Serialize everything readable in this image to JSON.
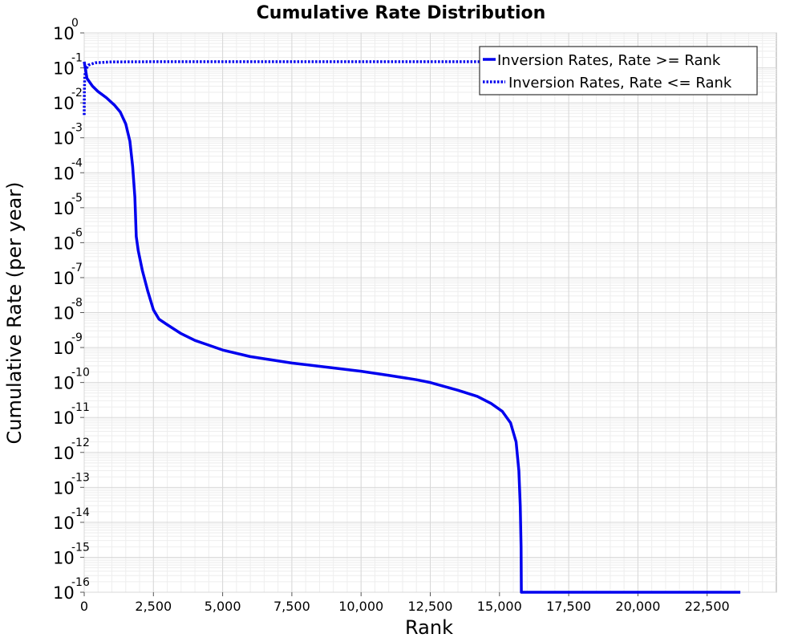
{
  "chart_data": {
    "type": "line",
    "title": "Cumulative Rate Distribution",
    "xlabel": "Rank",
    "ylabel": "Cumulative Rate (per year)",
    "xlim": [
      0,
      25000
    ],
    "ylim": [
      1e-16,
      1
    ],
    "yscale": "log",
    "grid": true,
    "legend_position": "top-right",
    "x_ticks": [
      {
        "value": 0,
        "label": "0"
      },
      {
        "value": 2500,
        "label": "2,500"
      },
      {
        "value": 5000,
        "label": "5,000"
      },
      {
        "value": 7500,
        "label": "7,500"
      },
      {
        "value": 10000,
        "label": "10,000"
      },
      {
        "value": 12500,
        "label": "12,500"
      },
      {
        "value": 15000,
        "label": "15,000"
      },
      {
        "value": 17500,
        "label": "17,500"
      },
      {
        "value": 20000,
        "label": "20,000"
      },
      {
        "value": 22500,
        "label": "22,500"
      }
    ],
    "y_ticks": [
      {
        "exp": 0,
        "base": "10",
        "sup": "0"
      },
      {
        "exp": -1,
        "base": "10",
        "sup": "-1"
      },
      {
        "exp": -2,
        "base": "10",
        "sup": "-2"
      },
      {
        "exp": -3,
        "base": "10",
        "sup": "-3"
      },
      {
        "exp": -4,
        "base": "10",
        "sup": "-4"
      },
      {
        "exp": -5,
        "base": "10",
        "sup": "-5"
      },
      {
        "exp": -6,
        "base": "10",
        "sup": "-6"
      },
      {
        "exp": -7,
        "base": "10",
        "sup": "-7"
      },
      {
        "exp": -8,
        "base": "10",
        "sup": "-8"
      },
      {
        "exp": -9,
        "base": "10",
        "sup": "-9"
      },
      {
        "exp": -10,
        "base": "10",
        "sup": "-10"
      },
      {
        "exp": -11,
        "base": "10",
        "sup": "-11"
      },
      {
        "exp": -12,
        "base": "10",
        "sup": "-12"
      },
      {
        "exp": -13,
        "base": "10",
        "sup": "-13"
      },
      {
        "exp": -14,
        "base": "10",
        "sup": "-14"
      },
      {
        "exp": -15,
        "base": "10",
        "sup": "-15"
      },
      {
        "exp": -16,
        "base": "10",
        "sup": "-16"
      }
    ],
    "series": [
      {
        "name": "Inversion Rates, Rate >= Rank",
        "color": "#0000ee",
        "style": "solid",
        "points": [
          [
            0,
            0.15
          ],
          [
            100,
            0.05
          ],
          [
            300,
            0.03
          ],
          [
            500,
            0.021
          ],
          [
            800,
            0.014
          ],
          [
            1100,
            0.0085
          ],
          [
            1300,
            0.0055
          ],
          [
            1500,
            0.0025
          ],
          [
            1650,
            0.0008
          ],
          [
            1750,
            0.00015
          ],
          [
            1830,
            2e-05
          ],
          [
            1880,
            1.5e-06
          ],
          [
            1950,
            6e-07
          ],
          [
            2100,
            1.6e-07
          ],
          [
            2300,
            4e-08
          ],
          [
            2500,
            1.2e-08
          ],
          [
            2700,
            6.5e-09
          ],
          [
            3000,
            4.5e-09
          ],
          [
            3500,
            2.5e-09
          ],
          [
            4000,
            1.6e-09
          ],
          [
            5000,
            8.5e-10
          ],
          [
            6000,
            5.5e-10
          ],
          [
            7500,
            3.6e-10
          ],
          [
            9000,
            2.6e-10
          ],
          [
            10000,
            2.1e-10
          ],
          [
            11000,
            1.6e-10
          ],
          [
            12000,
            1.2e-10
          ],
          [
            12500,
            1e-10
          ],
          [
            13500,
            6e-11
          ],
          [
            14200,
            4e-11
          ],
          [
            14700,
            2.5e-11
          ],
          [
            15100,
            1.5e-11
          ],
          [
            15400,
            7e-12
          ],
          [
            15600,
            2e-12
          ],
          [
            15700,
            3e-13
          ],
          [
            15750,
            3e-14
          ],
          [
            15780,
            2e-15
          ],
          [
            15790,
            1e-16
          ],
          [
            23700,
            1e-16
          ]
        ]
      },
      {
        "name": "Inversion Rates, Rate <= Rank",
        "color": "#0000ee",
        "style": "dotted",
        "points": [
          [
            0,
            0.0045
          ],
          [
            5,
            0.02
          ],
          [
            20,
            0.06
          ],
          [
            60,
            0.09
          ],
          [
            150,
            0.12
          ],
          [
            400,
            0.14
          ],
          [
            1000,
            0.148
          ],
          [
            2500,
            0.15
          ],
          [
            10000,
            0.15
          ],
          [
            23700,
            0.15
          ]
        ]
      }
    ]
  }
}
